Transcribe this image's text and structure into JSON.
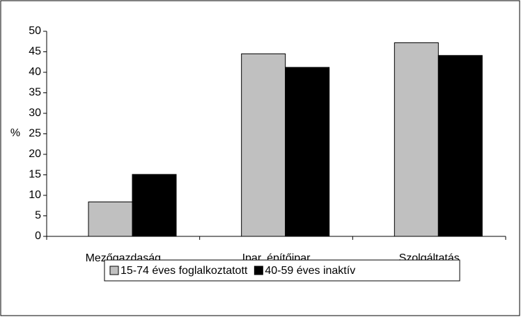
{
  "chart_data": {
    "type": "bar",
    "y_label": "%",
    "categories": [
      "Mezőgazdaság",
      "Ipar, építőipar",
      "Szolgáltatás"
    ],
    "series": [
      {
        "name": "15-74 éves foglalkoztatott",
        "color": "#c0c0c0",
        "values": [
          8.4,
          44.5,
          47.2
        ]
      },
      {
        "name": "40-59 éves inaktív",
        "color": "#000000",
        "values": [
          15.1,
          41.2,
          44.1
        ]
      }
    ],
    "ylim": [
      0,
      50
    ],
    "yticks": [
      0,
      5,
      10,
      15,
      20,
      25,
      30,
      35,
      40,
      45,
      50
    ],
    "legend": "bottom"
  }
}
